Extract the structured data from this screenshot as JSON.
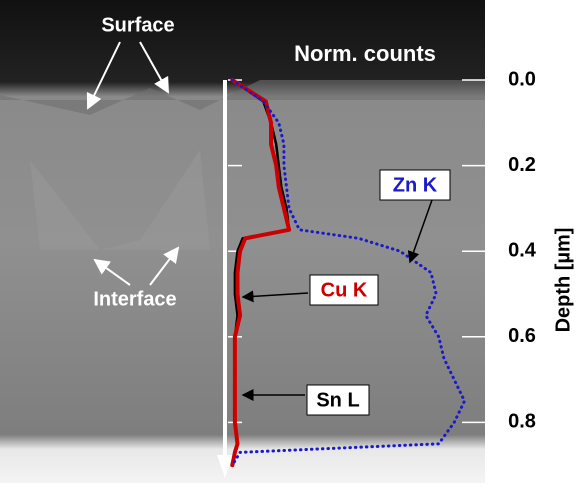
{
  "chart_data": {
    "type": "line",
    "xlabel": "Norm. counts",
    "ylabel": "Depth [µm]",
    "annotations": [
      "Surface",
      "Interface"
    ],
    "y": [
      0,
      0.05,
      0.1,
      0.15,
      0.2,
      0.25,
      0.3,
      0.35,
      0.37,
      0.4,
      0.45,
      0.5,
      0.55,
      0.6,
      0.65,
      0.7,
      0.75,
      0.8,
      0.85,
      0.87,
      0.9
    ],
    "series": [
      {
        "name": "Sn L",
        "color": "#000000",
        "values": [
          0.04,
          0.16,
          0.19,
          0.21,
          0.22,
          0.23,
          0.25,
          0.26,
          0.08,
          0.06,
          0.05,
          0.05,
          0.06,
          0.05,
          0.05,
          0.05,
          0.05,
          0.05,
          0.06,
          0.05,
          0.04
        ]
      },
      {
        "name": "Cu K",
        "color": "#cc0000",
        "values": [
          0.04,
          0.17,
          0.19,
          0.19,
          0.21,
          0.22,
          0.24,
          0.26,
          0.09,
          0.07,
          0.06,
          0.06,
          0.07,
          0.05,
          0.05,
          0.05,
          0.05,
          0.05,
          0.06,
          0.05,
          0.04
        ]
      },
      {
        "name": "Zn K",
        "color": "#1a1acc",
        "values": [
          0.04,
          0.16,
          0.22,
          0.24,
          0.24,
          0.25,
          0.26,
          0.3,
          0.53,
          0.69,
          0.81,
          0.83,
          0.79,
          0.84,
          0.86,
          0.9,
          0.94,
          0.9,
          0.84,
          0.07,
          0.04
        ]
      }
    ],
    "xlim": [
      0,
      1
    ],
    "ylim": [
      0,
      0.92
    ],
    "yticks": [
      {
        "value": 0,
        "label": "0.0"
      },
      0.2,
      0.4,
      0.6,
      0.8
    ]
  }
}
